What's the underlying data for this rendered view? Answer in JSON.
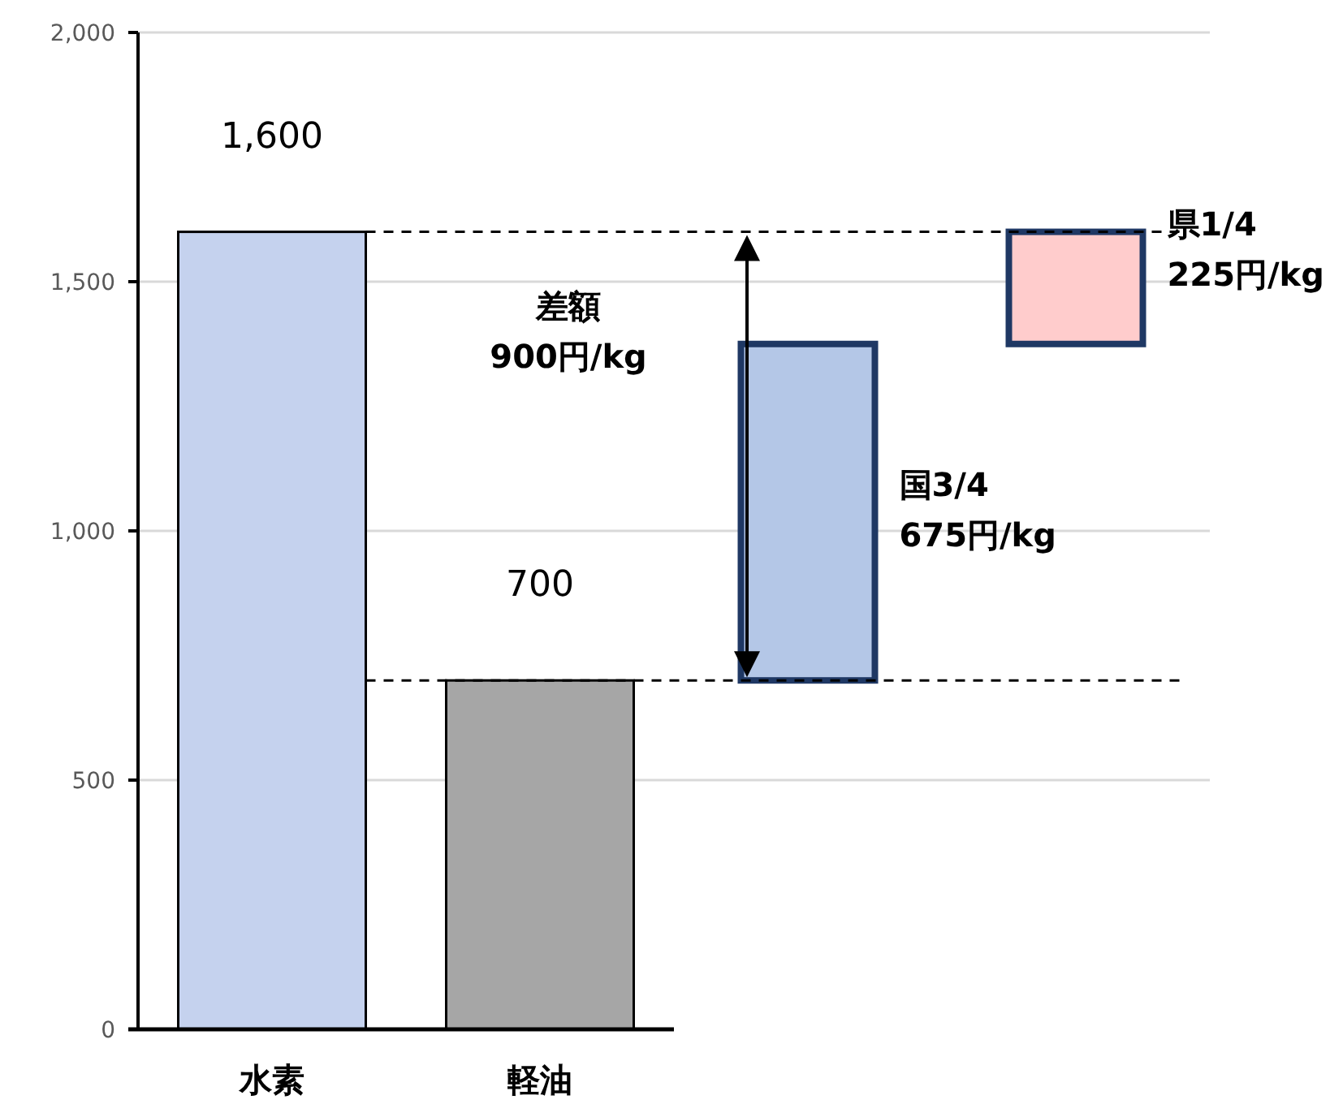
{
  "chart_data": {
    "type": "bar",
    "categories": [
      "水素",
      "軽油",
      null,
      null
    ],
    "values": [
      1600,
      700,
      675,
      225
    ],
    "base": [
      0,
      0,
      700,
      1375
    ],
    "colors": [
      "#c5d2ee",
      "#a6a6a6",
      "#b4c7e7",
      "#ffcccc"
    ],
    "value_labels": [
      "1,600",
      "700",
      null,
      null
    ],
    "ylim": [
      0,
      2000
    ],
    "yticks": [
      0,
      500,
      {
        "value": 1000,
        "label": "1,000"
      },
      {
        "value": 1500,
        "label": "1,500"
      },
      {
        "value": 2000,
        "label": "2,000"
      }
    ],
    "grid": "y",
    "ref_lines": [
      {
        "axis": "y",
        "value": 1600,
        "line_style": "dashed"
      },
      {
        "axis": "y",
        "value": 700,
        "line_style": "dashed"
      }
    ],
    "annotations": [
      "差額\n900円/kg",
      "国3/4\n675円/kg",
      "県1/4\n225円/kg"
    ]
  }
}
